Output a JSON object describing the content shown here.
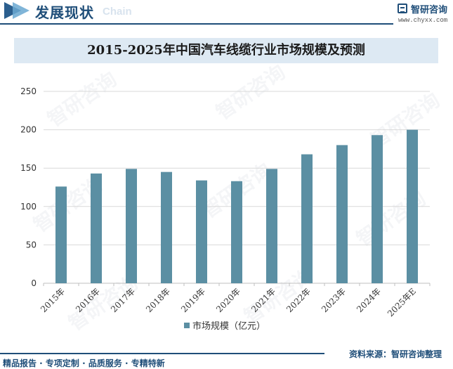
{
  "header": {
    "title": "发展现状",
    "subtitle": "Chain",
    "brand_name": "智研咨询",
    "brand_url": "www.chyxx.com"
  },
  "footer": {
    "left": "精品报告 · 专项定制 · 品质服务 · 专精特新",
    "right": "资料来源：智研咨询整理"
  },
  "watermark": "智研咨询",
  "chart_data": {
    "type": "bar",
    "title": "2015-2025年中国汽车线缆行业市场规模及预测",
    "categories": [
      "2015年",
      "2016年",
      "2017年",
      "2018年",
      "2019年",
      "2020年",
      "2021年",
      "2022年",
      "2023年",
      "2024年",
      "2025年E"
    ],
    "series": [
      {
        "name": "市场规模（亿元）",
        "values": [
          126,
          143,
          149,
          145,
          134,
          133,
          149,
          168,
          180,
          193,
          200
        ],
        "color": "#5b8fa3"
      }
    ],
    "yticks": [
      0,
      50,
      100,
      150,
      200,
      250
    ],
    "ylim": [
      0,
      250
    ],
    "xlabel": "",
    "ylabel": "",
    "grid": true,
    "legend": "bottom-center"
  }
}
